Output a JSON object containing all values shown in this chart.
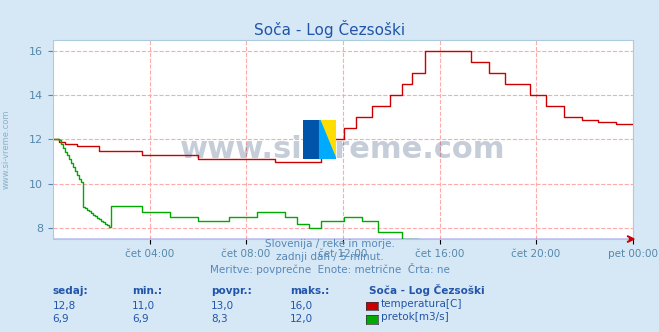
{
  "title": "Soča - Log Čezsoški",
  "bg_color": "#d6e8f5",
  "plot_bg_color": "#ffffff",
  "grid_color": "#ffaaaa",
  "grid_style": "--",
  "ylim": [
    7.5,
    16.5
  ],
  "yticks": [
    8,
    10,
    12,
    14,
    16
  ],
  "xlabel_color": "#5588aa",
  "ylabel_color": "#5588aa",
  "title_color": "#2255aa",
  "watermark_text": "www.si-vreme.com",
  "watermark_color": "#1a3a6a",
  "watermark_alpha": 0.25,
  "subtitle_lines": [
    "Slovenija / reke in morje.",
    "zadnji dan / 5 minut.",
    "Meritve: povprečne  Enote: metrične  Črta: ne"
  ],
  "subtitle_color": "#5588bb",
  "legend_title": "Soča - Log Čezsoški",
  "legend_entries": [
    "temperatura[C]",
    "pretok[m3/s]"
  ],
  "legend_colors": [
    "#cc0000",
    "#00aa00"
  ],
  "stats_headers": [
    "sedaj:",
    "min.:",
    "povpr.:",
    "maks.:"
  ],
  "stats_temp": [
    "12,8",
    "11,0",
    "13,0",
    "16,0"
  ],
  "stats_flow": [
    "6,9",
    "6,9",
    "8,3",
    "12,0"
  ],
  "temp_color": "#cc0000",
  "flow_color": "#00aa00",
  "axis_arrow_color": "#cc0000",
  "left_label": "www.si-vreme.com",
  "left_label_color": "#8ab0c8",
  "xtick_labels": [
    "čet 04:00",
    "čet 08:00",
    "čet 12:00",
    "čet 16:00",
    "čet 20:00",
    "pet 00:00"
  ],
  "xtick_positions": [
    0.167,
    0.333,
    0.5,
    0.667,
    0.833,
    1.0
  ],
  "n_points": 288
}
